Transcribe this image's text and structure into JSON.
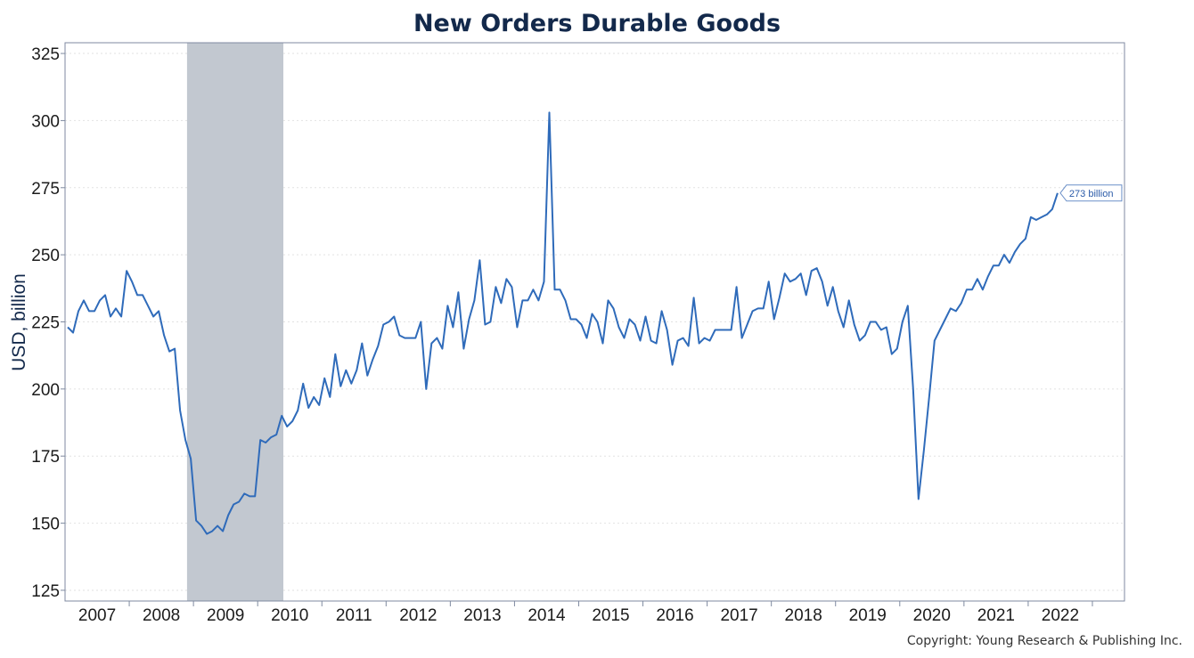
{
  "colors": {
    "line": "#2f6bba",
    "recession": "#c2c8d0",
    "grid": "#e2e2e2",
    "axis": "#7f8aa0",
    "title": "#13294b"
  },
  "copyright": "Copyright: Young Research & Publishing Inc.",
  "chart_data": {
    "type": "line",
    "title": "New Orders Durable Goods",
    "ylabel": "USD, billion",
    "xlabel": "",
    "ylim": [
      121,
      329
    ],
    "xlim": [
      2006.0,
      2022.5
    ],
    "yticks": [
      125,
      150,
      175,
      200,
      225,
      250,
      275,
      300,
      325
    ],
    "xtick_labels": [
      "2007",
      "2008",
      "2009",
      "2010",
      "2011",
      "2012",
      "2013",
      "2014",
      "2015",
      "2016",
      "2017",
      "2018",
      "2019",
      "2020",
      "2021",
      "2022"
    ],
    "grid": true,
    "recession_band": [
      2007.9,
      2009.4
    ],
    "end_annotation": "273 billion",
    "series": [
      {
        "x_start": 2006.0,
        "x_step_months": 1,
        "values": [
          223,
          221,
          229,
          233,
          229,
          229,
          233,
          235,
          227,
          230,
          227,
          244,
          240,
          235,
          235,
          231,
          227,
          229,
          220,
          214,
          215,
          192,
          181,
          174,
          151,
          149,
          146,
          147,
          149,
          147,
          153,
          157,
          158,
          161,
          160,
          160,
          181,
          180,
          182,
          183,
          190,
          186,
          188,
          192,
          202,
          193,
          197,
          194,
          204,
          197,
          213,
          201,
          207,
          202,
          207,
          217,
          205,
          211,
          216,
          224,
          225,
          227,
          220,
          219,
          219,
          219,
          225,
          200,
          217,
          219,
          215,
          231,
          223,
          236,
          215,
          226,
          233,
          248,
          224,
          225,
          238,
          232,
          241,
          238,
          223,
          233,
          233,
          237,
          233,
          240,
          303,
          237,
          237,
          233,
          226,
          226,
          224,
          219,
          228,
          225,
          217,
          233,
          230,
          223,
          219,
          226,
          224,
          218,
          227,
          218,
          217,
          229,
          222,
          209,
          218,
          219,
          216,
          234,
          217,
          219,
          218,
          222,
          222,
          222,
          222,
          238,
          219,
          224,
          229,
          230,
          230,
          240,
          226,
          234,
          243,
          240,
          241,
          243,
          235,
          244,
          245,
          240,
          231,
          238,
          229,
          223,
          233,
          224,
          218,
          220,
          225,
          225,
          222,
          223,
          213,
          215,
          225,
          231,
          200,
          159,
          177,
          197,
          218,
          222,
          226,
          230,
          229,
          232,
          237,
          237,
          241,
          237,
          242,
          246,
          246,
          250,
          247,
          251,
          254,
          256,
          264,
          263,
          264,
          265,
          267,
          273
        ]
      }
    ]
  }
}
